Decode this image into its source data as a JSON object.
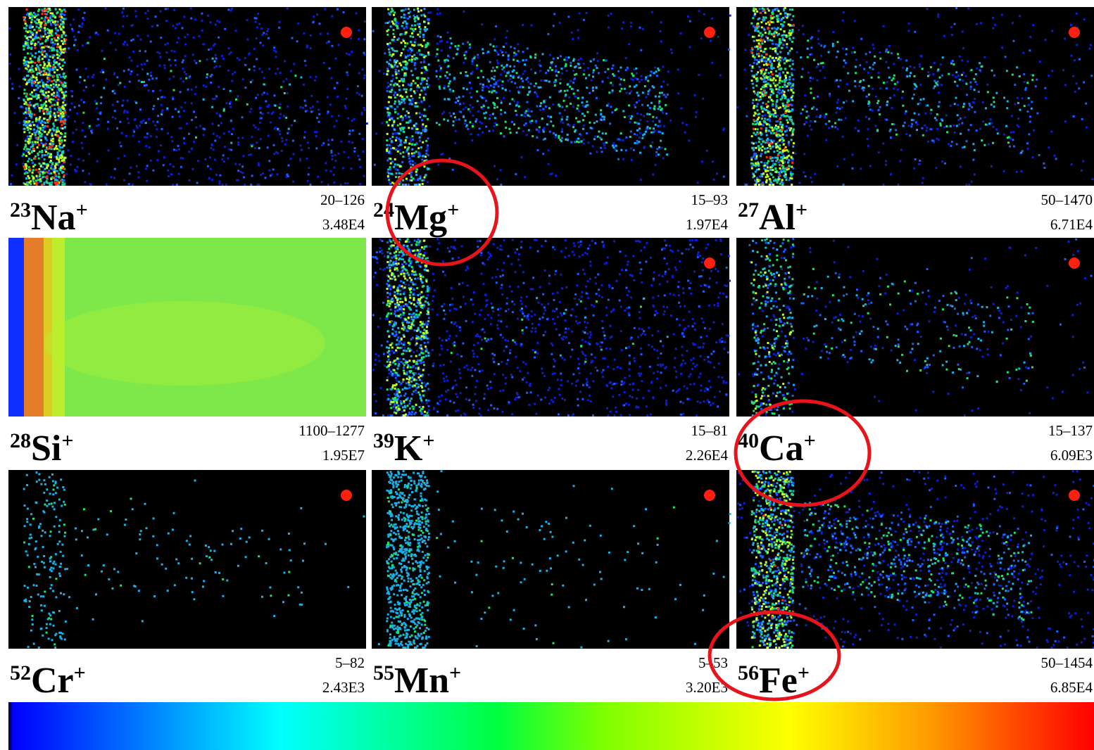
{
  "panels": [
    {
      "mass": "23",
      "ion": "Na",
      "charge": "+",
      "range": "20–126",
      "total": "3.48E4"
    },
    {
      "mass": "24",
      "ion": "Mg",
      "charge": "+",
      "range": "15–93",
      "total": "1.97E4"
    },
    {
      "mass": "27",
      "ion": "Al",
      "charge": "+",
      "range": "50–1470",
      "total": "6.71E4"
    },
    {
      "mass": "28",
      "ion": "Si",
      "charge": "+",
      "range": "1100–1277",
      "total": "1.95E7"
    },
    {
      "mass": "39",
      "ion": "K",
      "charge": "+",
      "range": "15–81",
      "total": "2.26E4"
    },
    {
      "mass": "40",
      "ion": "Ca",
      "charge": "+",
      "range": "15–137",
      "total": "6.09E3"
    },
    {
      "mass": "52",
      "ion": "Cr",
      "charge": "+",
      "range": "5–82",
      "total": "2.43E3"
    },
    {
      "mass": "55",
      "ion": "Mn",
      "charge": "+",
      "range": "5–53",
      "total": "3.20E3"
    },
    {
      "mass": "56",
      "ion": "Fe",
      "charge": "+",
      "range": "50–1454",
      "total": "6.85E4"
    }
  ]
}
